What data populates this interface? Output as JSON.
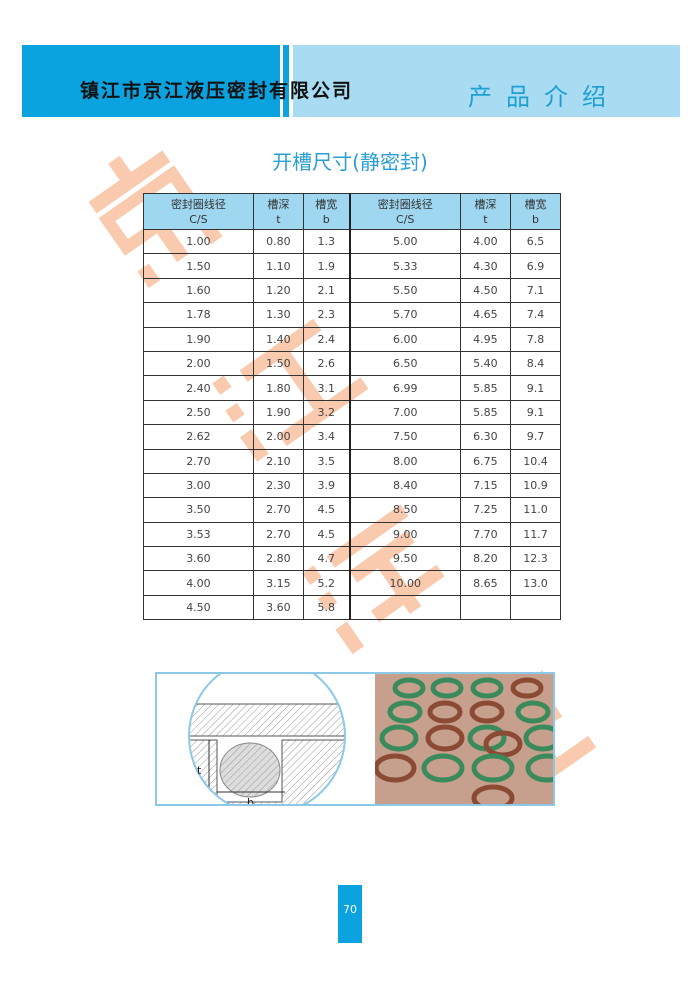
{
  "header": {
    "company": "镇江市京江液压密封有限公司",
    "section": "产品介绍",
    "brand_color": "#0aa3e0"
  },
  "title": "开槽尺寸(静密封)",
  "watermark": [
    "京",
    "江",
    "液",
    "压"
  ],
  "table": {
    "headers": [
      [
        "密封圈线径",
        "C/S"
      ],
      [
        "槽深",
        "t"
      ],
      [
        "槽宽",
        "b"
      ],
      [
        "密封圈线径",
        "C/S"
      ],
      [
        "槽深",
        "t"
      ],
      [
        "槽宽",
        "b"
      ]
    ],
    "rows": [
      [
        "1.00",
        "0.80",
        "1.3",
        "5.00",
        "4.00",
        "6.5"
      ],
      [
        "1.50",
        "1.10",
        "1.9",
        "5.33",
        "4.30",
        "6.9"
      ],
      [
        "1.60",
        "1.20",
        "2.1",
        "5.50",
        "4.50",
        "7.1"
      ],
      [
        "1.78",
        "1.30",
        "2.3",
        "5.70",
        "4.65",
        "7.4"
      ],
      [
        "1.90",
        "1.40",
        "2.4",
        "6.00",
        "4.95",
        "7.8"
      ],
      [
        "2.00",
        "1.50",
        "2.6",
        "6.50",
        "5.40",
        "8.4"
      ],
      [
        "2.40",
        "1.80",
        "3.1",
        "6.99",
        "5.85",
        "9.1"
      ],
      [
        "2.50",
        "1.90",
        "3.2",
        "7.00",
        "5.85",
        "9.1"
      ],
      [
        "2.62",
        "2.00",
        "3.4",
        "7.50",
        "6.30",
        "9.7"
      ],
      [
        "2.70",
        "2.10",
        "3.5",
        "8.00",
        "6.75",
        "10.4"
      ],
      [
        "3.00",
        "2.30",
        "3.9",
        "8.40",
        "7.15",
        "10.9"
      ],
      [
        "3.50",
        "2.70",
        "4.5",
        "8.50",
        "7.25",
        "11.0"
      ],
      [
        "3.53",
        "2.70",
        "4.5",
        "9.00",
        "7.70",
        "11.7"
      ],
      [
        "3.60",
        "2.80",
        "4.7",
        "9.50",
        "8.20",
        "12.3"
      ],
      [
        "4.00",
        "3.15",
        "5.2",
        "10.00",
        "8.65",
        "13.0"
      ],
      [
        "4.50",
        "3.60",
        "5.8",
        "",
        "",
        ""
      ]
    ]
  },
  "diagram": {
    "label_t": "t",
    "label_b": "b"
  },
  "page_number": "70"
}
